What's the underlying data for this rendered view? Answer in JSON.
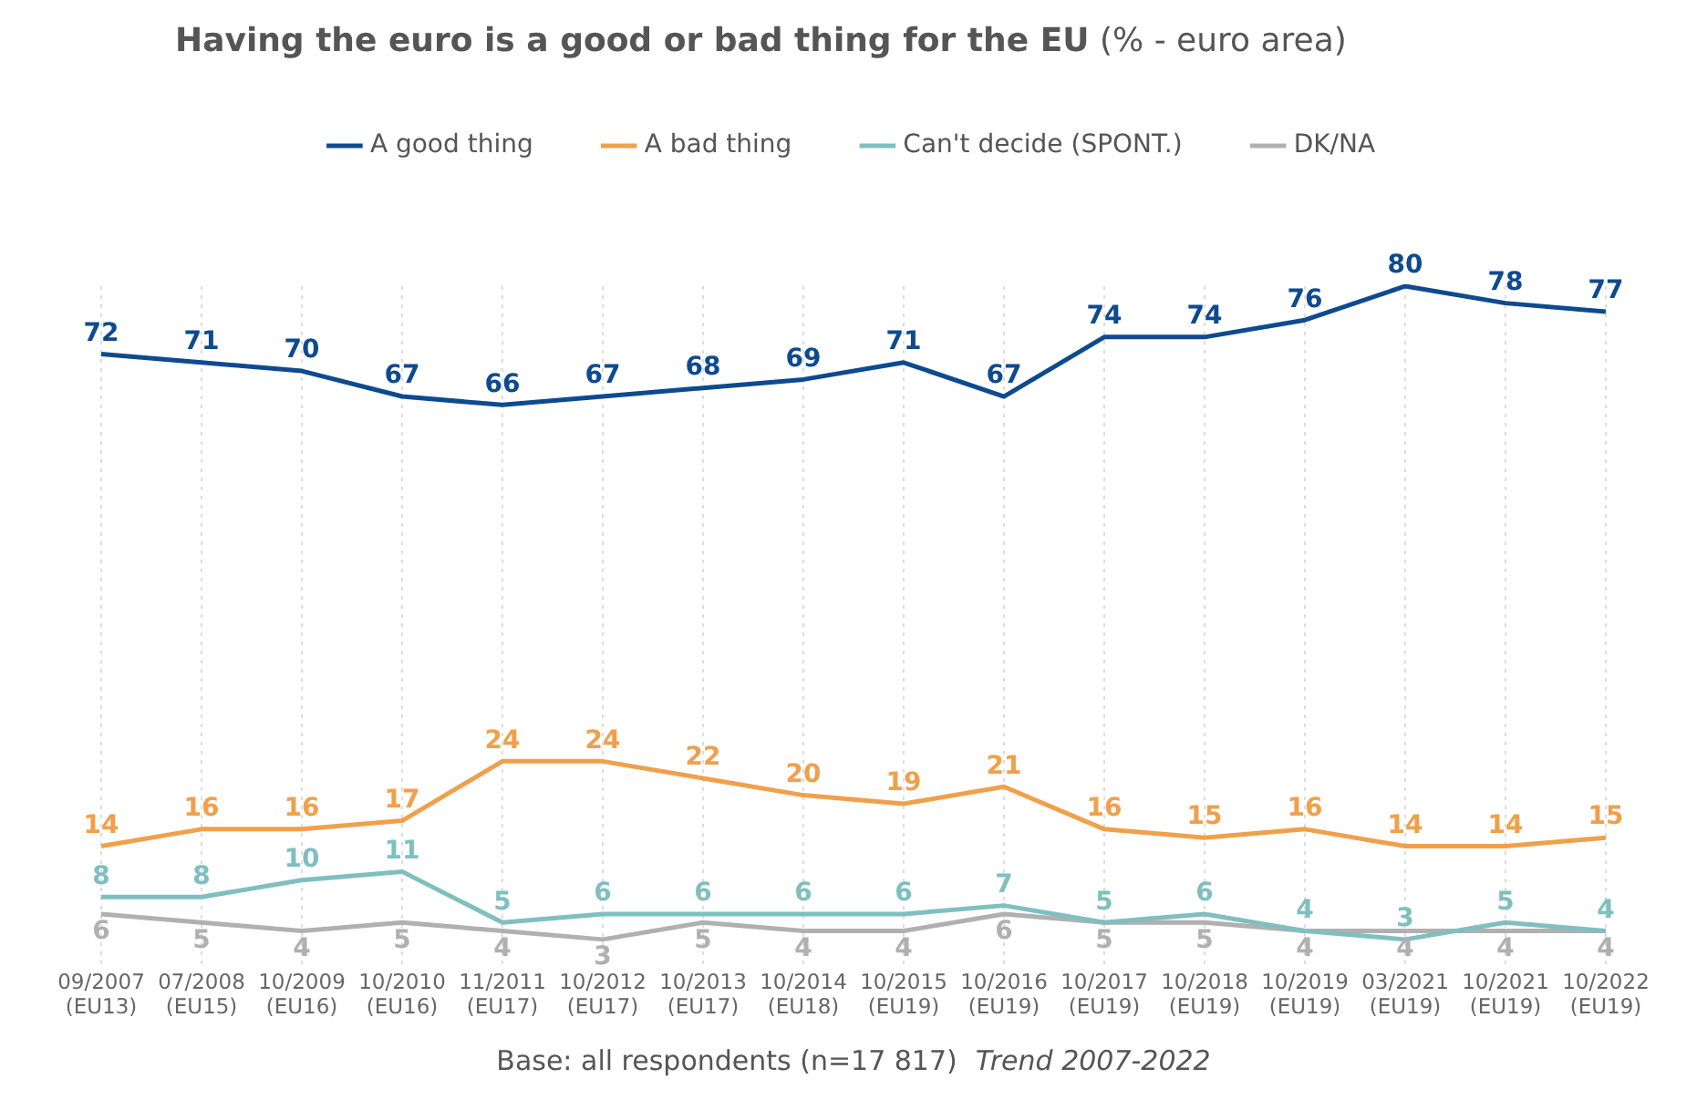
{
  "chart_data": {
    "type": "line",
    "title": "Having the euro is a good or bad thing for the EU",
    "subtitle": "(% - euro area)",
    "categories": [
      "09/2007 (EU13)",
      "07/2008 (EU15)",
      "10/2009 (EU16)",
      "10/2010 (EU16)",
      "11/2011 (EU17)",
      "10/2012 (EU17)",
      "10/2013 (EU17)",
      "10/2014 (EU18)",
      "10/2015 (EU19)",
      "10/2016 (EU19)",
      "10/2017 (EU19)",
      "10/2018 (EU19)",
      "10/2019 (EU19)",
      "03/2021 (EU19)",
      "10/2021 (EU19)",
      "10/2022 (EU19)"
    ],
    "series": [
      {
        "name": "A good thing",
        "color": "#0e4a8f",
        "values": [
          72,
          71,
          70,
          67,
          66,
          67,
          68,
          69,
          71,
          67,
          74,
          74,
          76,
          80,
          78,
          77
        ]
      },
      {
        "name": "A bad thing",
        "color": "#f0a04b",
        "values": [
          14,
          16,
          16,
          17,
          24,
          24,
          22,
          20,
          19,
          21,
          16,
          15,
          16,
          14,
          14,
          15
        ]
      },
      {
        "name": "Can't decide (SPONT.)",
        "color": "#7fbfc0",
        "values": [
          8,
          8,
          10,
          11,
          5,
          6,
          6,
          6,
          6,
          7,
          5,
          6,
          4,
          3,
          5,
          4
        ]
      },
      {
        "name": "DK/NA",
        "color": "#b0b0b0",
        "values": [
          6,
          5,
          4,
          5,
          4,
          3,
          5,
          4,
          4,
          6,
          5,
          5,
          4,
          4,
          4,
          4
        ]
      }
    ],
    "data_labels": true,
    "grid": "x",
    "legend": "top",
    "marker": "none",
    "line_style": "solid",
    "annotations": [
      "Base: all respondents (n=17 817)",
      "Trend 2007-2022"
    ]
  }
}
